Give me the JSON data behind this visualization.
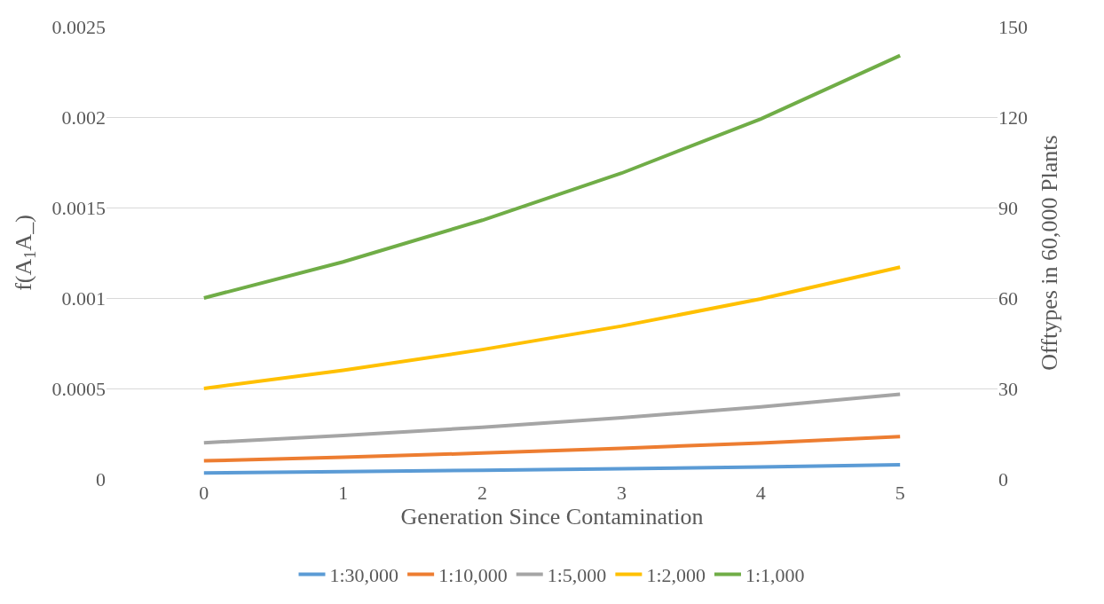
{
  "chart_data": {
    "type": "line",
    "xlabel": "Generation Since Contamination",
    "ylabel": "f(A$_{1}$A_)",
    "y2label": "Offtypes in 60,000 Plants",
    "x": [
      0,
      1,
      2,
      3,
      4,
      5
    ],
    "xlim": [
      -0.7,
      5.7
    ],
    "xticks": [
      0,
      1,
      2,
      3,
      4,
      5
    ],
    "ylim": [
      0,
      0.0025
    ],
    "yticks": [
      0,
      0.0005,
      0.001,
      0.0015,
      0.002,
      0.0025
    ],
    "y2lim": [
      0,
      150
    ],
    "y2ticks": [
      0,
      30,
      60,
      90,
      120,
      150
    ],
    "grid": "y",
    "legend": "bottom",
    "marker": "none",
    "line_style": "solid",
    "series": [
      {
        "name": "1:30,000",
        "color": "#5b9bd5",
        "values": [
          3.3e-05,
          4e-05,
          4.8e-05,
          5.6e-05,
          6.6e-05,
          7.8e-05
        ]
      },
      {
        "name": "1:10,000",
        "color": "#ed7d31",
        "values": [
          0.0001,
          0.00012,
          0.000143,
          0.000169,
          0.000199,
          0.000234
        ]
      },
      {
        "name": "1:5,000",
        "color": "#a5a5a5",
        "values": [
          0.0002,
          0.00024,
          0.000286,
          0.000338,
          0.000398,
          0.000468
        ]
      },
      {
        "name": "1:2,000",
        "color": "#ffc000",
        "values": [
          0.0005,
          0.0006,
          0.000715,
          0.000845,
          0.000995,
          0.00117
        ]
      },
      {
        "name": "1:1,000",
        "color": "#70ad47",
        "values": [
          0.001,
          0.0012,
          0.00143,
          0.00169,
          0.00199,
          0.00234
        ]
      }
    ]
  }
}
